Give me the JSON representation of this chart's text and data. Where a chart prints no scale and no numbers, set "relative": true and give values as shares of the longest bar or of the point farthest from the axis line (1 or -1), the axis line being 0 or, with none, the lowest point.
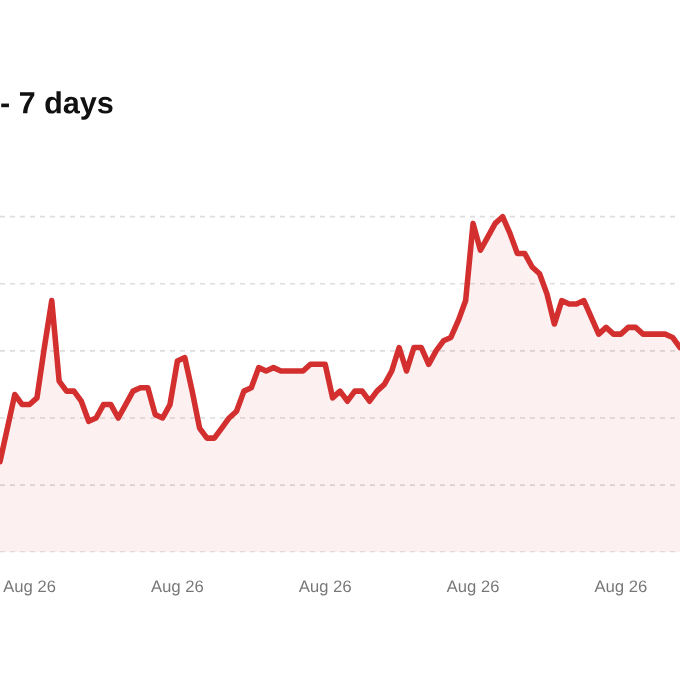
{
  "chart_data": {
    "type": "area",
    "title": "- 7 days",
    "relative": true,
    "grid": "y",
    "categories": [
      null,
      null,
      null,
      null,
      "Aug 26",
      null,
      null,
      null,
      null,
      null,
      null,
      null,
      null,
      null,
      null,
      null,
      null,
      null,
      null,
      null,
      null,
      null,
      null,
      null,
      "Aug 26",
      null,
      null,
      null,
      null,
      null,
      null,
      null,
      null,
      null,
      null,
      null,
      null,
      null,
      null,
      null,
      null,
      null,
      null,
      null,
      "Aug 26",
      null,
      null,
      null,
      null,
      null,
      null,
      null,
      null,
      null,
      null,
      null,
      null,
      null,
      null,
      null,
      null,
      null,
      null,
      null,
      "Aug 26",
      null,
      null,
      null,
      null,
      null,
      null,
      null,
      null,
      null,
      null,
      null,
      null,
      null,
      null,
      null,
      null,
      null,
      null,
      null,
      "Aug 26",
      null,
      null,
      null,
      null,
      null,
      null,
      null,
      null
    ],
    "series": [
      {
        "color": "#d32f2f",
        "values": [
          0.27,
          0.37,
          0.47,
          0.44,
          0.44,
          0.46,
          0.61,
          0.75,
          0.51,
          0.48,
          0.48,
          0.45,
          0.39,
          0.4,
          0.44,
          0.44,
          0.4,
          0.44,
          0.48,
          0.49,
          0.49,
          0.41,
          0.4,
          0.44,
          0.57,
          0.58,
          0.48,
          0.37,
          0.34,
          0.34,
          0.37,
          0.4,
          0.42,
          0.48,
          0.49,
          0.55,
          0.54,
          0.55,
          0.54,
          0.54,
          0.54,
          0.54,
          0.56,
          0.56,
          0.56,
          0.46,
          0.48,
          0.45,
          0.48,
          0.48,
          0.45,
          0.48,
          0.5,
          0.54,
          0.61,
          0.54,
          0.61,
          0.61,
          0.56,
          0.6,
          0.63,
          0.64,
          0.69,
          0.75,
          0.98,
          0.9,
          0.94,
          0.98,
          1,
          0.95,
          0.89,
          0.89,
          0.85,
          0.83,
          0.77,
          0.68,
          0.75,
          0.74,
          0.74,
          0.75,
          0.7,
          0.65,
          0.67,
          0.65,
          0.65,
          0.67,
          0.67,
          0.65,
          0.65,
          0.65,
          0.65,
          0.64,
          0.61
        ]
      }
    ]
  }
}
